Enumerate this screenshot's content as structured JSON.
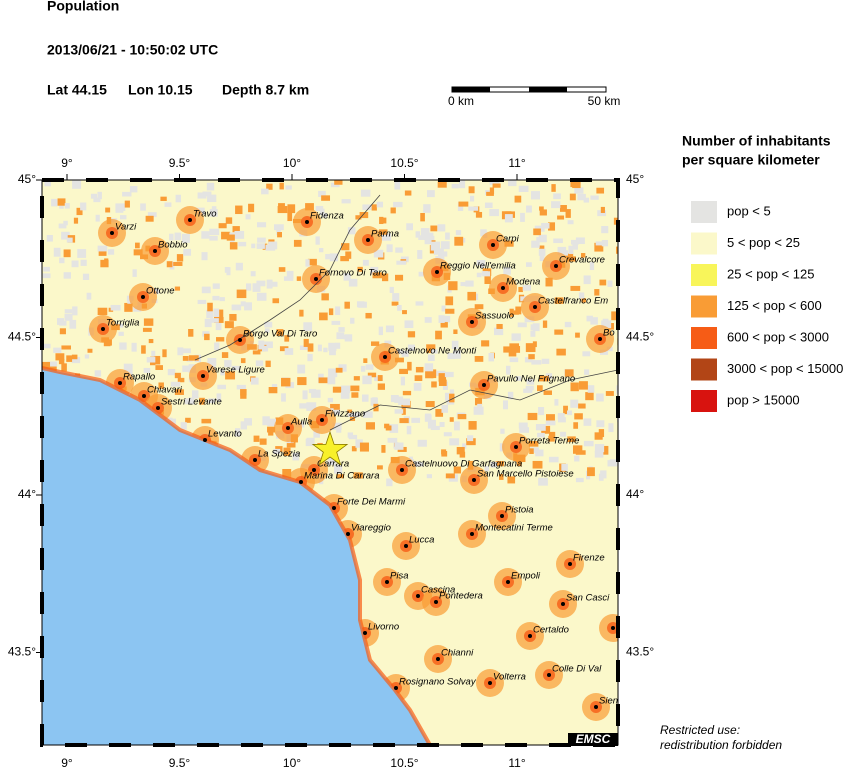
{
  "header": {
    "title": "Population",
    "datetime": "2013/06/21 - 10:50:02 UTC",
    "lat": "Lat 44.15",
    "lon": "Lon 10.15",
    "depth": "Depth  8.7 km"
  },
  "scale": {
    "start": "0 km",
    "end": "50 km"
  },
  "legend": {
    "title_line1": "Number of inhabitants",
    "title_line2": "per square kilometer",
    "items": [
      {
        "label": "pop < 5",
        "color": "#e4e4e2"
      },
      {
        "label": "5 < pop < 25",
        "color": "#fbf8ca"
      },
      {
        "label": "25 < pop < 125",
        "color": "#f8f55a"
      },
      {
        "label": "125 < pop < 600",
        "color": "#f99c35"
      },
      {
        "label": "600 < pop < 3000",
        "color": "#f65c16"
      },
      {
        "label": "3000 < pop < 15000",
        "color": "#b24516"
      },
      {
        "label": "pop > 15000",
        "color": "#d8130f"
      }
    ]
  },
  "lon_ticks": [
    {
      "value": 9,
      "label": "9°"
    },
    {
      "value": 9.5,
      "label": "9.5°"
    },
    {
      "value": 10,
      "label": "10°"
    },
    {
      "value": 10.5,
      "label": "10.5°"
    },
    {
      "value": 11,
      "label": "11°"
    }
  ],
  "lat_ticks": [
    {
      "value": 45,
      "label": "45°"
    },
    {
      "value": 44.5,
      "label": "44.5°"
    },
    {
      "value": 44,
      "label": "44°"
    },
    {
      "value": 43.5,
      "label": "43.5°"
    }
  ],
  "cities": [
    "Travo",
    "Varzi",
    "Bobbio",
    "Ottone",
    "Torriglia",
    "Fidenza",
    "Parma",
    "Carpi",
    "Crevalcore",
    "Reggio Nell'emilia",
    "Modena",
    "Castelfranco Em",
    "Fornovo Di Taro",
    "Sassuolo",
    "Bo",
    "Borgo Val Di Taro",
    "Castelnovo Ne Monti",
    "Varese Ligure",
    "Rapallo",
    "Pavullo Nel Frignano",
    "Chiavari",
    "Sestri Levante",
    "Fivizzano",
    "Aulla",
    "Levanto",
    "Porreta Terme",
    "La Spezia",
    "Carrara",
    "Marina Di Carrara",
    "Castelnuovo Di Garfagnana",
    "San Marcello Pistoiese",
    "Forte Dei Marmi",
    "Pistoia",
    "Viareggio",
    "Montecatini Terme",
    "Lucca",
    "Firenze",
    "Pisa",
    "Empoli",
    "Cascina",
    "Pontedera",
    "San Casci",
    "Figl",
    "Livorno",
    "Certaldo",
    "Chianni",
    "Colle Di Val",
    "Volterra",
    "Rosignano Solvay",
    "Sien"
  ],
  "footer": {
    "line1": "Restricted use:",
    "line2": "redistribution forbidden",
    "brand": "EMSC"
  }
}
